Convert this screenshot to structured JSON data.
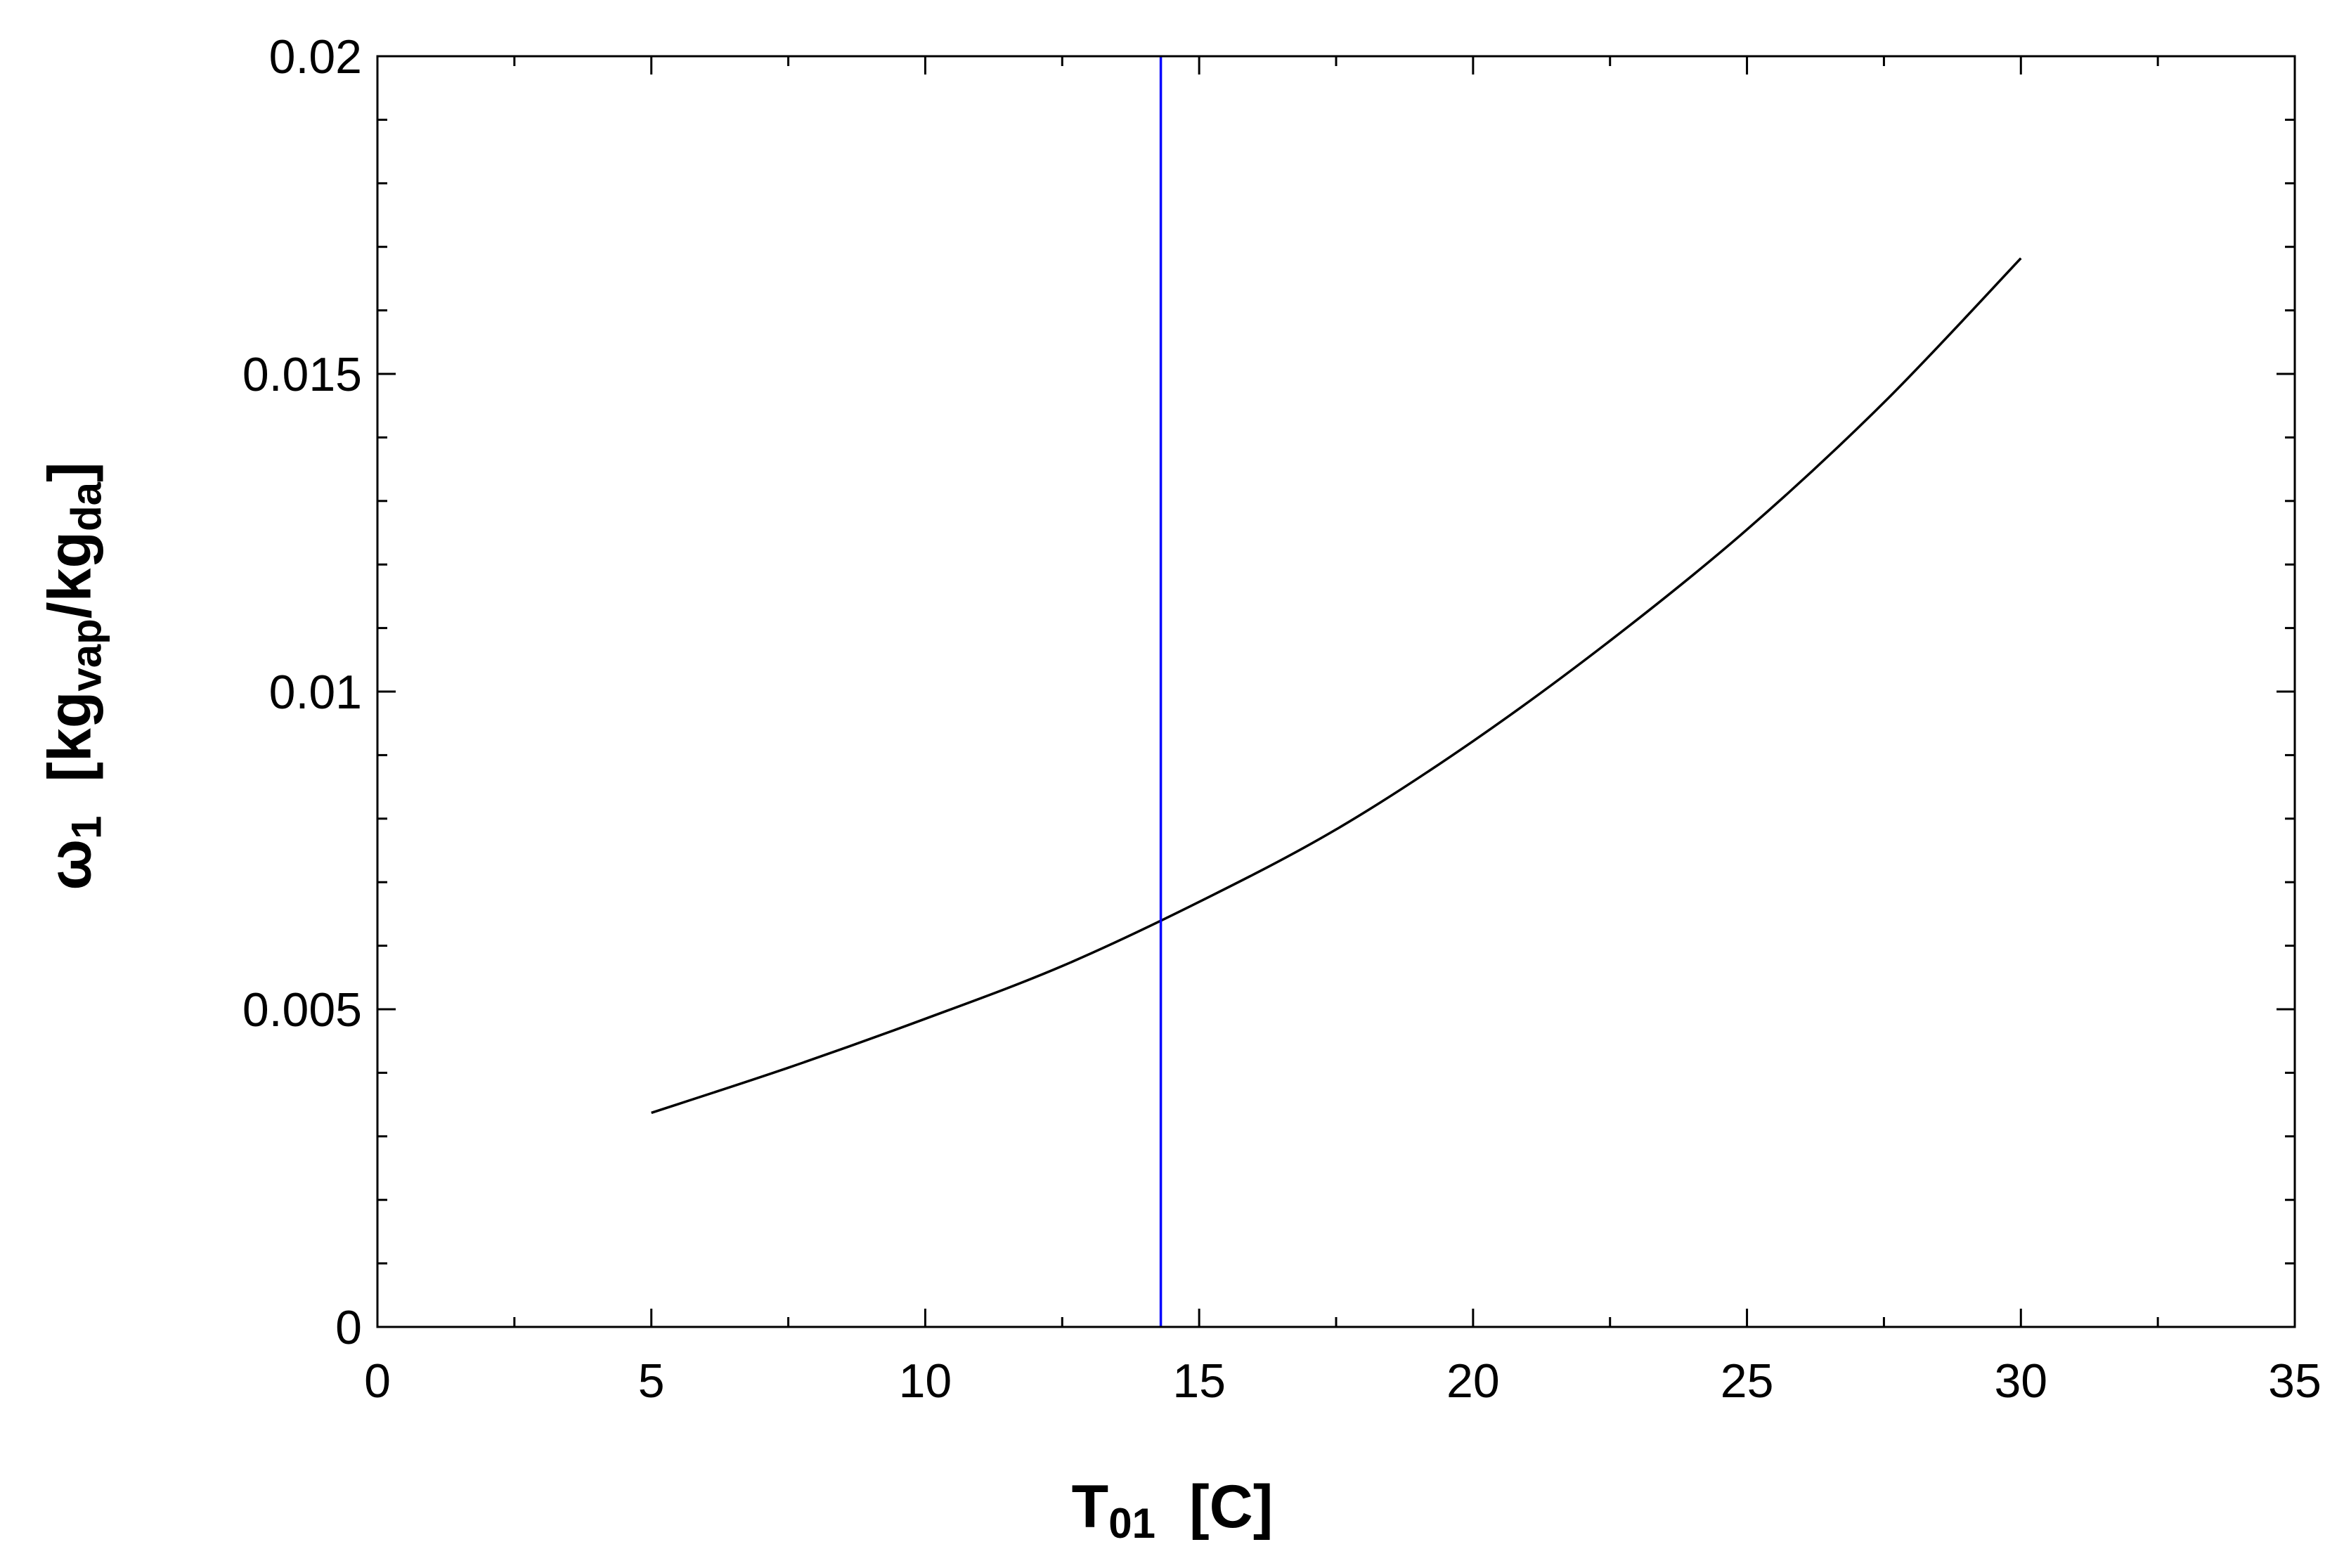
{
  "chart_data": {
    "type": "line",
    "title": "",
    "xlabel": {
      "base": "T",
      "sub": "01",
      "unit": "[C]"
    },
    "ylabel": {
      "symbol": "ω",
      "symbol_sub": "1",
      "unit_prefix": "[kg",
      "unit_sub_1": "vap",
      "unit_mid": "/kg",
      "unit_sub_2": "da",
      "unit_suffix": "]"
    },
    "xlim": [
      0,
      35
    ],
    "ylim": [
      0,
      0.02
    ],
    "x_ticks": [
      0,
      5,
      10,
      15,
      20,
      25,
      30,
      35
    ],
    "x_tick_labels": [
      "0",
      "5",
      "10",
      "15",
      "20",
      "25",
      "30",
      "35"
    ],
    "y_ticks": [
      0,
      0.005,
      0.01,
      0.015,
      0.02
    ],
    "y_tick_labels": [
      "0",
      "0.005",
      "0.01",
      "0.015",
      "0.02"
    ],
    "grid": false,
    "series": [
      {
        "color": "#000000",
        "x": [
          5,
          7.5,
          10,
          12.5,
          15,
          17.5,
          20,
          22.5,
          25,
          27.5,
          30
        ],
        "y": [
          0.00337,
          0.00408,
          0.00485,
          0.00568,
          0.00669,
          0.00783,
          0.00922,
          0.0108,
          0.01255,
          0.01455,
          0.01682
        ]
      },
      {
        "color": "#0000ff",
        "x": [
          14.3,
          14.3
        ],
        "y": [
          0,
          0.02
        ]
      }
    ]
  }
}
